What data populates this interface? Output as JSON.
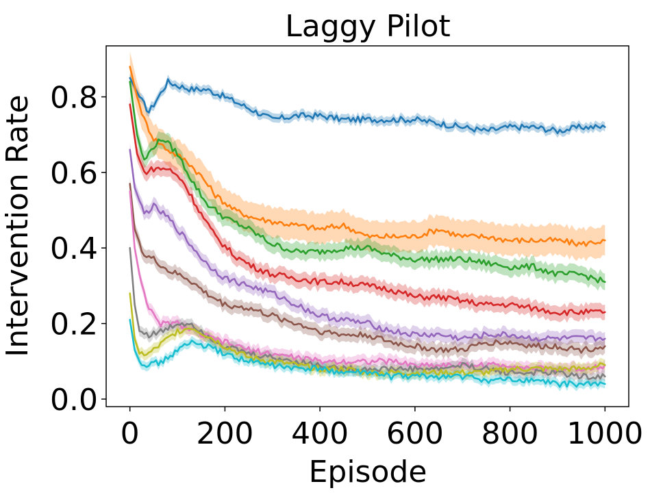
{
  "chart_data": {
    "type": "line",
    "title": "Laggy Pilot",
    "xlabel": "Episode",
    "ylabel": "Intervention Rate",
    "xlim": [
      -50,
      1050
    ],
    "ylim": [
      -0.02,
      0.935
    ],
    "xticks": [
      0,
      200,
      400,
      600,
      800,
      1000
    ],
    "yticks": [
      0.0,
      0.2,
      0.4,
      0.6,
      0.8
    ],
    "xtick_labels": [
      "0",
      "200",
      "400",
      "600",
      "800",
      "1000"
    ],
    "ytick_labels": [
      "0.0",
      "0.2",
      "0.4",
      "0.6",
      "0.8"
    ],
    "grid": false,
    "legend": "none",
    "series": [
      {
        "color": "#1f77b4",
        "band": 0.012,
        "points": [
          [
            0,
            0.85
          ],
          [
            20,
            0.8
          ],
          [
            40,
            0.76
          ],
          [
            60,
            0.8
          ],
          [
            80,
            0.84
          ],
          [
            100,
            0.83
          ],
          [
            130,
            0.82
          ],
          [
            160,
            0.82
          ],
          [
            200,
            0.8
          ],
          [
            250,
            0.77
          ],
          [
            300,
            0.74
          ],
          [
            350,
            0.75
          ],
          [
            400,
            0.75
          ],
          [
            450,
            0.74
          ],
          [
            500,
            0.74
          ],
          [
            550,
            0.74
          ],
          [
            600,
            0.74
          ],
          [
            650,
            0.73
          ],
          [
            700,
            0.72
          ],
          [
            750,
            0.71
          ],
          [
            800,
            0.72
          ],
          [
            850,
            0.72
          ],
          [
            900,
            0.71
          ],
          [
            950,
            0.72
          ],
          [
            1000,
            0.72
          ]
        ]
      },
      {
        "color": "#ff7f0e",
        "band": 0.04,
        "points": [
          [
            0,
            0.88
          ],
          [
            15,
            0.8
          ],
          [
            30,
            0.74
          ],
          [
            50,
            0.69
          ],
          [
            80,
            0.66
          ],
          [
            120,
            0.63
          ],
          [
            150,
            0.59
          ],
          [
            180,
            0.54
          ],
          [
            220,
            0.5
          ],
          [
            260,
            0.48
          ],
          [
            300,
            0.47
          ],
          [
            350,
            0.46
          ],
          [
            400,
            0.45
          ],
          [
            450,
            0.46
          ],
          [
            500,
            0.43
          ],
          [
            550,
            0.43
          ],
          [
            600,
            0.43
          ],
          [
            650,
            0.45
          ],
          [
            700,
            0.43
          ],
          [
            750,
            0.43
          ],
          [
            800,
            0.42
          ],
          [
            850,
            0.42
          ],
          [
            900,
            0.42
          ],
          [
            950,
            0.41
          ],
          [
            1000,
            0.42
          ]
        ]
      },
      {
        "color": "#2ca02c",
        "band": 0.022,
        "points": [
          [
            0,
            0.84
          ],
          [
            15,
            0.7
          ],
          [
            30,
            0.63
          ],
          [
            50,
            0.67
          ],
          [
            70,
            0.69
          ],
          [
            100,
            0.65
          ],
          [
            130,
            0.58
          ],
          [
            160,
            0.52
          ],
          [
            200,
            0.48
          ],
          [
            250,
            0.45
          ],
          [
            300,
            0.41
          ],
          [
            350,
            0.39
          ],
          [
            400,
            0.39
          ],
          [
            450,
            0.4
          ],
          [
            500,
            0.4
          ],
          [
            550,
            0.38
          ],
          [
            600,
            0.37
          ],
          [
            650,
            0.37
          ],
          [
            700,
            0.37
          ],
          [
            750,
            0.36
          ],
          [
            800,
            0.35
          ],
          [
            850,
            0.35
          ],
          [
            900,
            0.33
          ],
          [
            950,
            0.33
          ],
          [
            1000,
            0.31
          ]
        ]
      },
      {
        "color": "#d62728",
        "band": 0.02,
        "points": [
          [
            0,
            0.78
          ],
          [
            15,
            0.65
          ],
          [
            30,
            0.6
          ],
          [
            50,
            0.61
          ],
          [
            80,
            0.61
          ],
          [
            110,
            0.58
          ],
          [
            150,
            0.49
          ],
          [
            180,
            0.43
          ],
          [
            220,
            0.38
          ],
          [
            260,
            0.35
          ],
          [
            300,
            0.33
          ],
          [
            350,
            0.32
          ],
          [
            400,
            0.31
          ],
          [
            450,
            0.31
          ],
          [
            500,
            0.3
          ],
          [
            550,
            0.29
          ],
          [
            600,
            0.27
          ],
          [
            650,
            0.27
          ],
          [
            700,
            0.26
          ],
          [
            750,
            0.25
          ],
          [
            800,
            0.25
          ],
          [
            850,
            0.24
          ],
          [
            900,
            0.23
          ],
          [
            950,
            0.23
          ],
          [
            1000,
            0.23
          ]
        ]
      },
      {
        "color": "#9467bd",
        "band": 0.018,
        "points": [
          [
            0,
            0.66
          ],
          [
            10,
            0.56
          ],
          [
            30,
            0.49
          ],
          [
            50,
            0.51
          ],
          [
            80,
            0.48
          ],
          [
            120,
            0.42
          ],
          [
            160,
            0.36
          ],
          [
            200,
            0.32
          ],
          [
            250,
            0.3
          ],
          [
            300,
            0.28
          ],
          [
            350,
            0.25
          ],
          [
            400,
            0.22
          ],
          [
            450,
            0.21
          ],
          [
            500,
            0.2
          ],
          [
            550,
            0.18
          ],
          [
            600,
            0.17
          ],
          [
            650,
            0.17
          ],
          [
            700,
            0.16
          ],
          [
            750,
            0.17
          ],
          [
            800,
            0.17
          ],
          [
            850,
            0.16
          ],
          [
            900,
            0.16
          ],
          [
            950,
            0.16
          ],
          [
            1000,
            0.16
          ]
        ]
      },
      {
        "color": "#8c564b",
        "band": 0.018,
        "points": [
          [
            0,
            0.57
          ],
          [
            10,
            0.45
          ],
          [
            30,
            0.38
          ],
          [
            50,
            0.37
          ],
          [
            80,
            0.34
          ],
          [
            120,
            0.32
          ],
          [
            160,
            0.28
          ],
          [
            200,
            0.25
          ],
          [
            250,
            0.24
          ],
          [
            300,
            0.22
          ],
          [
            350,
            0.2
          ],
          [
            400,
            0.18
          ],
          [
            450,
            0.17
          ],
          [
            500,
            0.17
          ],
          [
            550,
            0.15
          ],
          [
            600,
            0.14
          ],
          [
            650,
            0.13
          ],
          [
            700,
            0.13
          ],
          [
            750,
            0.15
          ],
          [
            800,
            0.15
          ],
          [
            850,
            0.14
          ],
          [
            900,
            0.14
          ],
          [
            950,
            0.13
          ],
          [
            1000,
            0.14
          ]
        ]
      },
      {
        "color": "#e377c2",
        "band": 0.016,
        "points": [
          [
            0,
            0.55
          ],
          [
            10,
            0.4
          ],
          [
            20,
            0.33
          ],
          [
            40,
            0.24
          ],
          [
            60,
            0.2
          ],
          [
            100,
            0.2
          ],
          [
            150,
            0.17
          ],
          [
            200,
            0.15
          ],
          [
            250,
            0.13
          ],
          [
            300,
            0.12
          ],
          [
            350,
            0.11
          ],
          [
            400,
            0.1
          ],
          [
            450,
            0.1
          ],
          [
            500,
            0.1
          ],
          [
            550,
            0.1
          ],
          [
            600,
            0.09
          ],
          [
            650,
            0.09
          ],
          [
            700,
            0.09
          ],
          [
            750,
            0.09
          ],
          [
            800,
            0.09
          ],
          [
            850,
            0.08
          ],
          [
            900,
            0.08
          ],
          [
            950,
            0.08
          ],
          [
            1000,
            0.09
          ]
        ]
      },
      {
        "color": "#7f7f7f",
        "band": 0.014,
        "points": [
          [
            0,
            0.4
          ],
          [
            10,
            0.25
          ],
          [
            20,
            0.18
          ],
          [
            40,
            0.17
          ],
          [
            70,
            0.18
          ],
          [
            100,
            0.2
          ],
          [
            130,
            0.2
          ],
          [
            160,
            0.17
          ],
          [
            200,
            0.14
          ],
          [
            250,
            0.12
          ],
          [
            300,
            0.11
          ],
          [
            350,
            0.1
          ],
          [
            400,
            0.09
          ],
          [
            450,
            0.08
          ],
          [
            500,
            0.08
          ],
          [
            550,
            0.08
          ],
          [
            600,
            0.08
          ],
          [
            650,
            0.08
          ],
          [
            700,
            0.09
          ],
          [
            750,
            0.08
          ],
          [
            800,
            0.07
          ],
          [
            850,
            0.07
          ],
          [
            900,
            0.07
          ],
          [
            950,
            0.06
          ],
          [
            1000,
            0.06
          ]
        ]
      },
      {
        "color": "#bcbd22",
        "band": 0.014,
        "points": [
          [
            0,
            0.28
          ],
          [
            10,
            0.16
          ],
          [
            20,
            0.12
          ],
          [
            40,
            0.12
          ],
          [
            70,
            0.15
          ],
          [
            100,
            0.18
          ],
          [
            130,
            0.19
          ],
          [
            160,
            0.17
          ],
          [
            200,
            0.14
          ],
          [
            250,
            0.11
          ],
          [
            300,
            0.1
          ],
          [
            350,
            0.09
          ],
          [
            400,
            0.08
          ],
          [
            450,
            0.08
          ],
          [
            500,
            0.07
          ],
          [
            550,
            0.07
          ],
          [
            600,
            0.07
          ],
          [
            650,
            0.07
          ],
          [
            700,
            0.07
          ],
          [
            750,
            0.07
          ],
          [
            800,
            0.08
          ],
          [
            850,
            0.08
          ],
          [
            900,
            0.08
          ],
          [
            950,
            0.08
          ],
          [
            1000,
            0.09
          ]
        ]
      },
      {
        "color": "#17becf",
        "band": 0.012,
        "points": [
          [
            0,
            0.21
          ],
          [
            10,
            0.13
          ],
          [
            20,
            0.1
          ],
          [
            40,
            0.09
          ],
          [
            70,
            0.1
          ],
          [
            100,
            0.13
          ],
          [
            130,
            0.15
          ],
          [
            160,
            0.14
          ],
          [
            200,
            0.12
          ],
          [
            250,
            0.1
          ],
          [
            300,
            0.09
          ],
          [
            350,
            0.08
          ],
          [
            400,
            0.08
          ],
          [
            450,
            0.07
          ],
          [
            500,
            0.07
          ],
          [
            550,
            0.06
          ],
          [
            600,
            0.06
          ],
          [
            650,
            0.06
          ],
          [
            700,
            0.06
          ],
          [
            750,
            0.05
          ],
          [
            800,
            0.05
          ],
          [
            850,
            0.05
          ],
          [
            900,
            0.04
          ],
          [
            950,
            0.04
          ],
          [
            1000,
            0.04
          ]
        ]
      }
    ]
  }
}
